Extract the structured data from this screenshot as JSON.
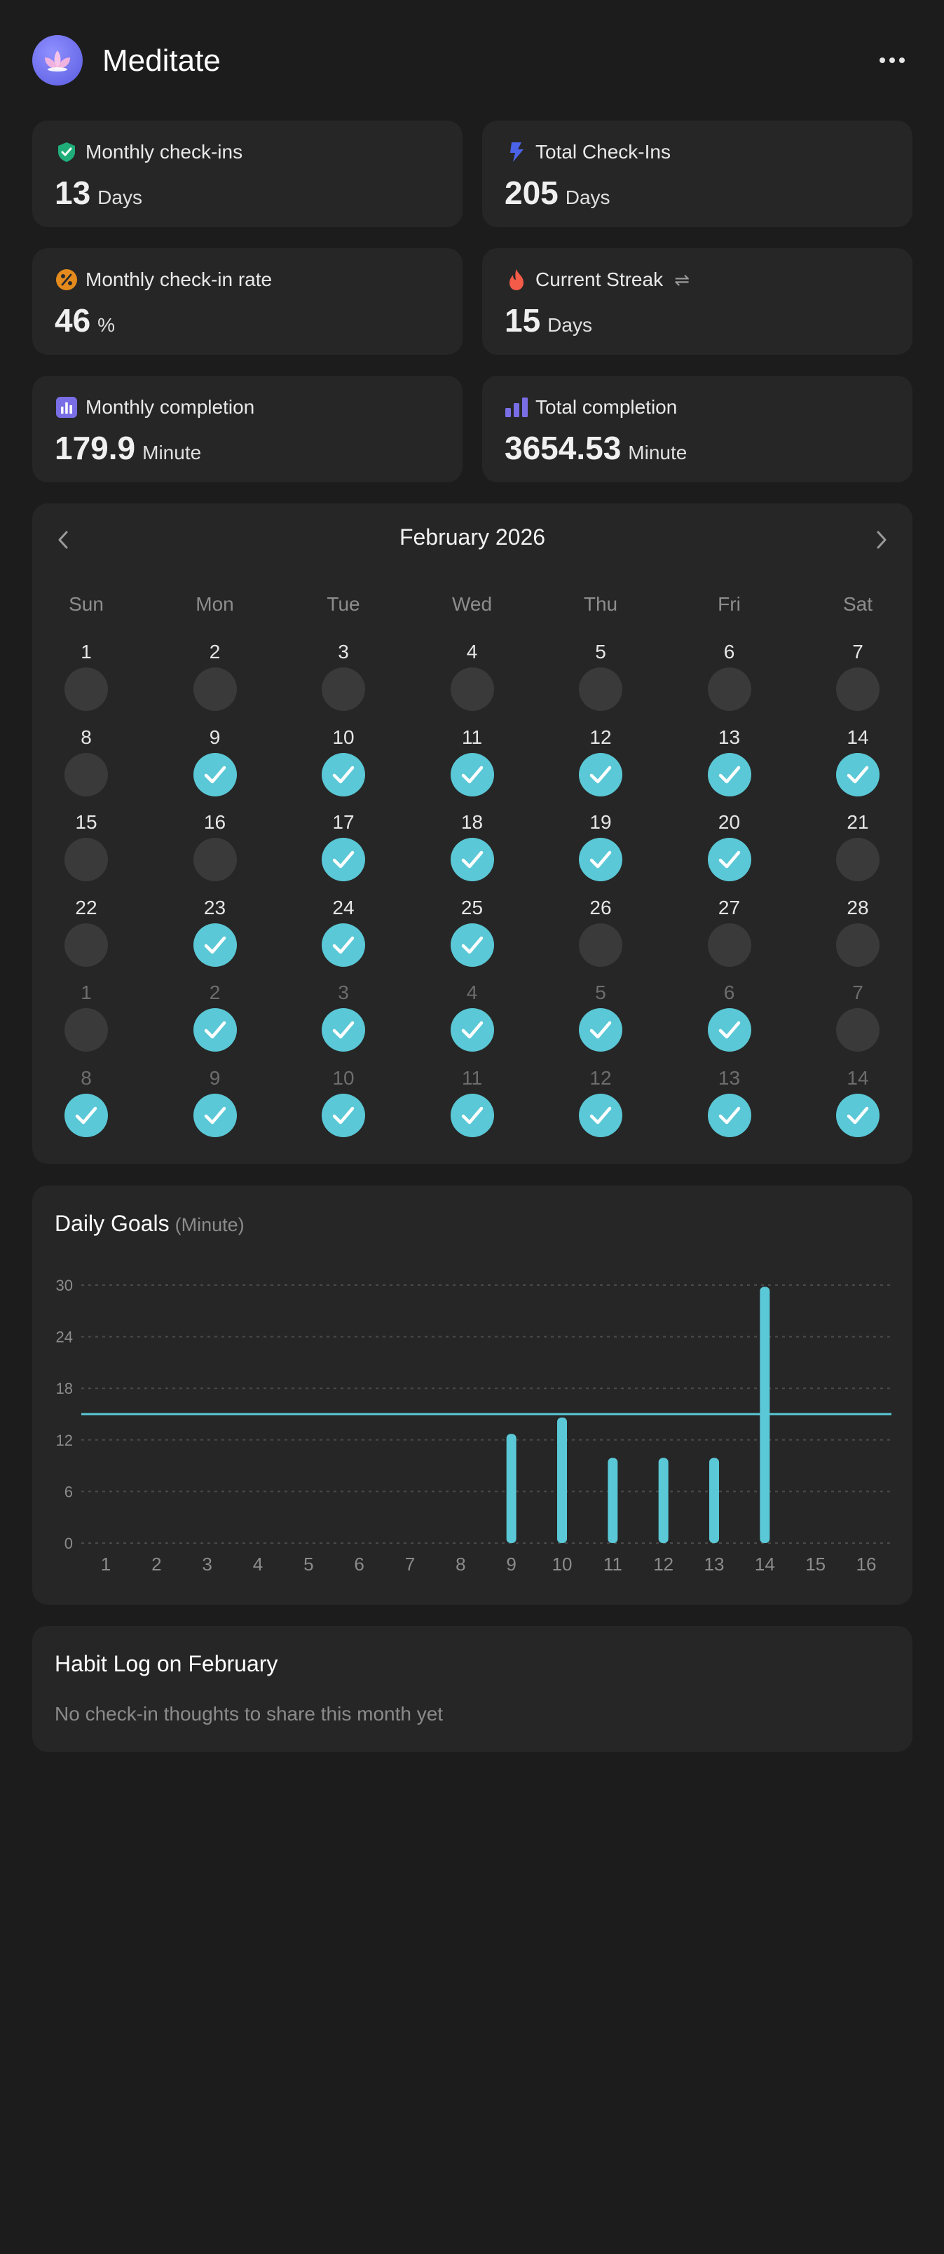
{
  "app": {
    "title": "Meditate"
  },
  "stats": [
    {
      "title": "Monthly check-ins",
      "value": "13",
      "unit": "Days",
      "icon": "check-shield-icon",
      "color": "#1fae7a"
    },
    {
      "title": "Total Check-Ins",
      "value": "205",
      "unit": "Days",
      "icon": "lightning-icon",
      "color": "#4b63e8"
    },
    {
      "title": "Monthly check-in rate",
      "value": "46",
      "unit": "%",
      "icon": "percent-icon",
      "color": "#e58b1e"
    },
    {
      "title": "Current Streak",
      "value": "15",
      "unit": "Days",
      "icon": "flame-icon",
      "color": "#f45b48",
      "extra": "⇌"
    },
    {
      "title": "Monthly completion",
      "value": "179.9",
      "unit": "Minute",
      "icon": "bar-chart-icon",
      "color": "#7a6ee6"
    },
    {
      "title": "Total completion",
      "value": "3654.53",
      "unit": "Minute",
      "icon": "bars-icon",
      "color": "#7a6ee6"
    }
  ],
  "calendar": {
    "month_label": "February 2026",
    "weekdays": [
      "Sun",
      "Mon",
      "Tue",
      "Wed",
      "Thu",
      "Fri",
      "Sat"
    ],
    "weeks": [
      [
        {
          "d": "1",
          "on": false,
          "dim": false
        },
        {
          "d": "2",
          "on": false,
          "dim": false
        },
        {
          "d": "3",
          "on": false,
          "dim": false
        },
        {
          "d": "4",
          "on": false,
          "dim": false
        },
        {
          "d": "5",
          "on": false,
          "dim": false
        },
        {
          "d": "6",
          "on": false,
          "dim": false
        },
        {
          "d": "7",
          "on": false,
          "dim": false
        }
      ],
      [
        {
          "d": "8",
          "on": false,
          "dim": false
        },
        {
          "d": "9",
          "on": true,
          "dim": false
        },
        {
          "d": "10",
          "on": true,
          "dim": false
        },
        {
          "d": "11",
          "on": true,
          "dim": false
        },
        {
          "d": "12",
          "on": true,
          "dim": false
        },
        {
          "d": "13",
          "on": true,
          "dim": false
        },
        {
          "d": "14",
          "on": true,
          "dim": false
        }
      ],
      [
        {
          "d": "15",
          "on": false,
          "dim": false
        },
        {
          "d": "16",
          "on": false,
          "dim": false
        },
        {
          "d": "17",
          "on": true,
          "dim": false
        },
        {
          "d": "18",
          "on": true,
          "dim": false
        },
        {
          "d": "19",
          "on": true,
          "dim": false
        },
        {
          "d": "20",
          "on": true,
          "dim": false
        },
        {
          "d": "21",
          "on": false,
          "dim": false
        }
      ],
      [
        {
          "d": "22",
          "on": false,
          "dim": false
        },
        {
          "d": "23",
          "on": true,
          "dim": false
        },
        {
          "d": "24",
          "on": true,
          "dim": false
        },
        {
          "d": "25",
          "on": true,
          "dim": false
        },
        {
          "d": "26",
          "on": false,
          "dim": false
        },
        {
          "d": "27",
          "on": false,
          "dim": false
        },
        {
          "d": "28",
          "on": false,
          "dim": false
        }
      ],
      [
        {
          "d": "1",
          "on": false,
          "dim": true
        },
        {
          "d": "2",
          "on": true,
          "dim": true
        },
        {
          "d": "3",
          "on": true,
          "dim": true
        },
        {
          "d": "4",
          "on": true,
          "dim": true
        },
        {
          "d": "5",
          "on": true,
          "dim": true
        },
        {
          "d": "6",
          "on": true,
          "dim": true
        },
        {
          "d": "7",
          "on": false,
          "dim": true
        }
      ],
      [
        {
          "d": "8",
          "on": true,
          "dim": true
        },
        {
          "d": "9",
          "on": true,
          "dim": true
        },
        {
          "d": "10",
          "on": true,
          "dim": true
        },
        {
          "d": "11",
          "on": true,
          "dim": true
        },
        {
          "d": "12",
          "on": true,
          "dim": true
        },
        {
          "d": "13",
          "on": true,
          "dim": true
        },
        {
          "d": "14",
          "on": true,
          "dim": true
        }
      ]
    ]
  },
  "daily_goals": {
    "title": "Daily Goals",
    "unit_label": "(Minute)"
  },
  "chart_data": {
    "type": "bar",
    "title": "Daily Goals",
    "ylabel": "(Minute)",
    "categories": [
      "1",
      "2",
      "3",
      "4",
      "5",
      "6",
      "7",
      "8",
      "9",
      "10",
      "11",
      "12",
      "13",
      "14",
      "15",
      "16"
    ],
    "values": [
      0,
      0,
      0,
      0,
      0,
      0,
      0,
      0,
      12.7,
      14.6,
      9.9,
      9.9,
      9.9,
      29.8,
      0,
      0
    ],
    "ylim": [
      0,
      30
    ],
    "yticks": [
      "0",
      "6",
      "12",
      "18",
      "24",
      "30"
    ],
    "goal_line": 15,
    "grid": true,
    "color": "#5ac8d6"
  },
  "habit_log": {
    "title": "Habit Log on February",
    "empty_text": "No check-in thoughts to share this month yet"
  }
}
